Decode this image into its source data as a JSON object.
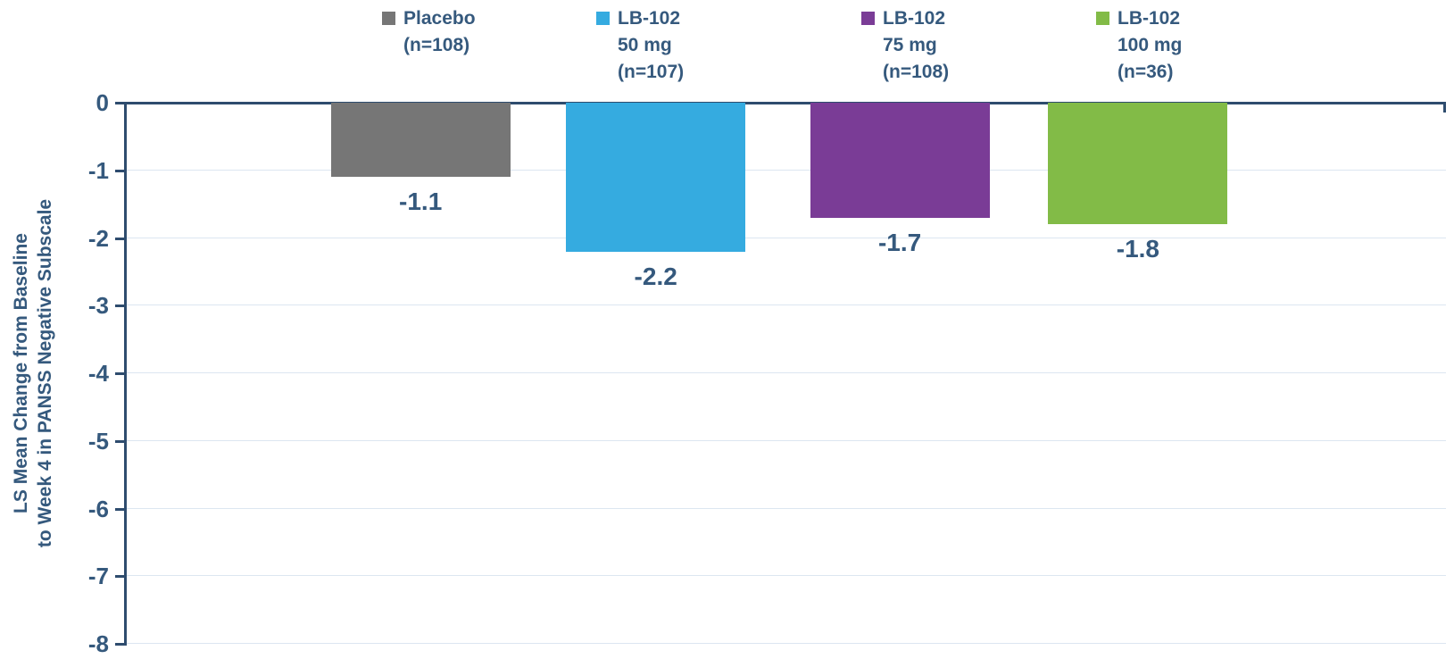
{
  "chart_data": {
    "type": "bar",
    "title": "",
    "ylabel_lines": [
      "LS Mean Change from Baseline",
      "to Week 4 in PANSS Negative Subscale"
    ],
    "ylim": [
      0,
      -8
    ],
    "yticks": [
      "0",
      "-1",
      "-2",
      "-3",
      "-4",
      "-5",
      "-6",
      "-7",
      "-8"
    ],
    "grid": "horizontal-light",
    "legend_position": "top",
    "categories": [
      "Placebo (n=108)",
      "LB-102 50 mg (n=107)",
      "LB-102 75 mg (n=108)",
      "LB-102 100 mg (n=36)"
    ],
    "series": [
      {
        "name": "Placebo",
        "legend_lines": [
          "Placebo",
          "(n=108)"
        ],
        "value": -1.1,
        "label": "-1.1",
        "color": "#767676"
      },
      {
        "name": "LB-102 50 mg",
        "legend_lines": [
          "LB-102",
          "50 mg",
          "(n=107)"
        ],
        "value": -2.2,
        "label": "-2.2",
        "color": "#35ABE0"
      },
      {
        "name": "LB-102 75 mg",
        "legend_lines": [
          "LB-102",
          "75 mg",
          "(n=108)"
        ],
        "value": -1.7,
        "label": "-1.7",
        "color": "#7A3C96"
      },
      {
        "name": "LB-102 100 mg",
        "legend_lines": [
          "LB-102",
          "100 mg",
          "(n=36)"
        ],
        "value": -1.8,
        "label": "-1.8",
        "color": "#82BB47"
      }
    ],
    "colors": {
      "text": "#35597D",
      "axis": "#2E4C6E",
      "gridline": "#DCE6F1",
      "background": "#FFFFFF"
    }
  }
}
